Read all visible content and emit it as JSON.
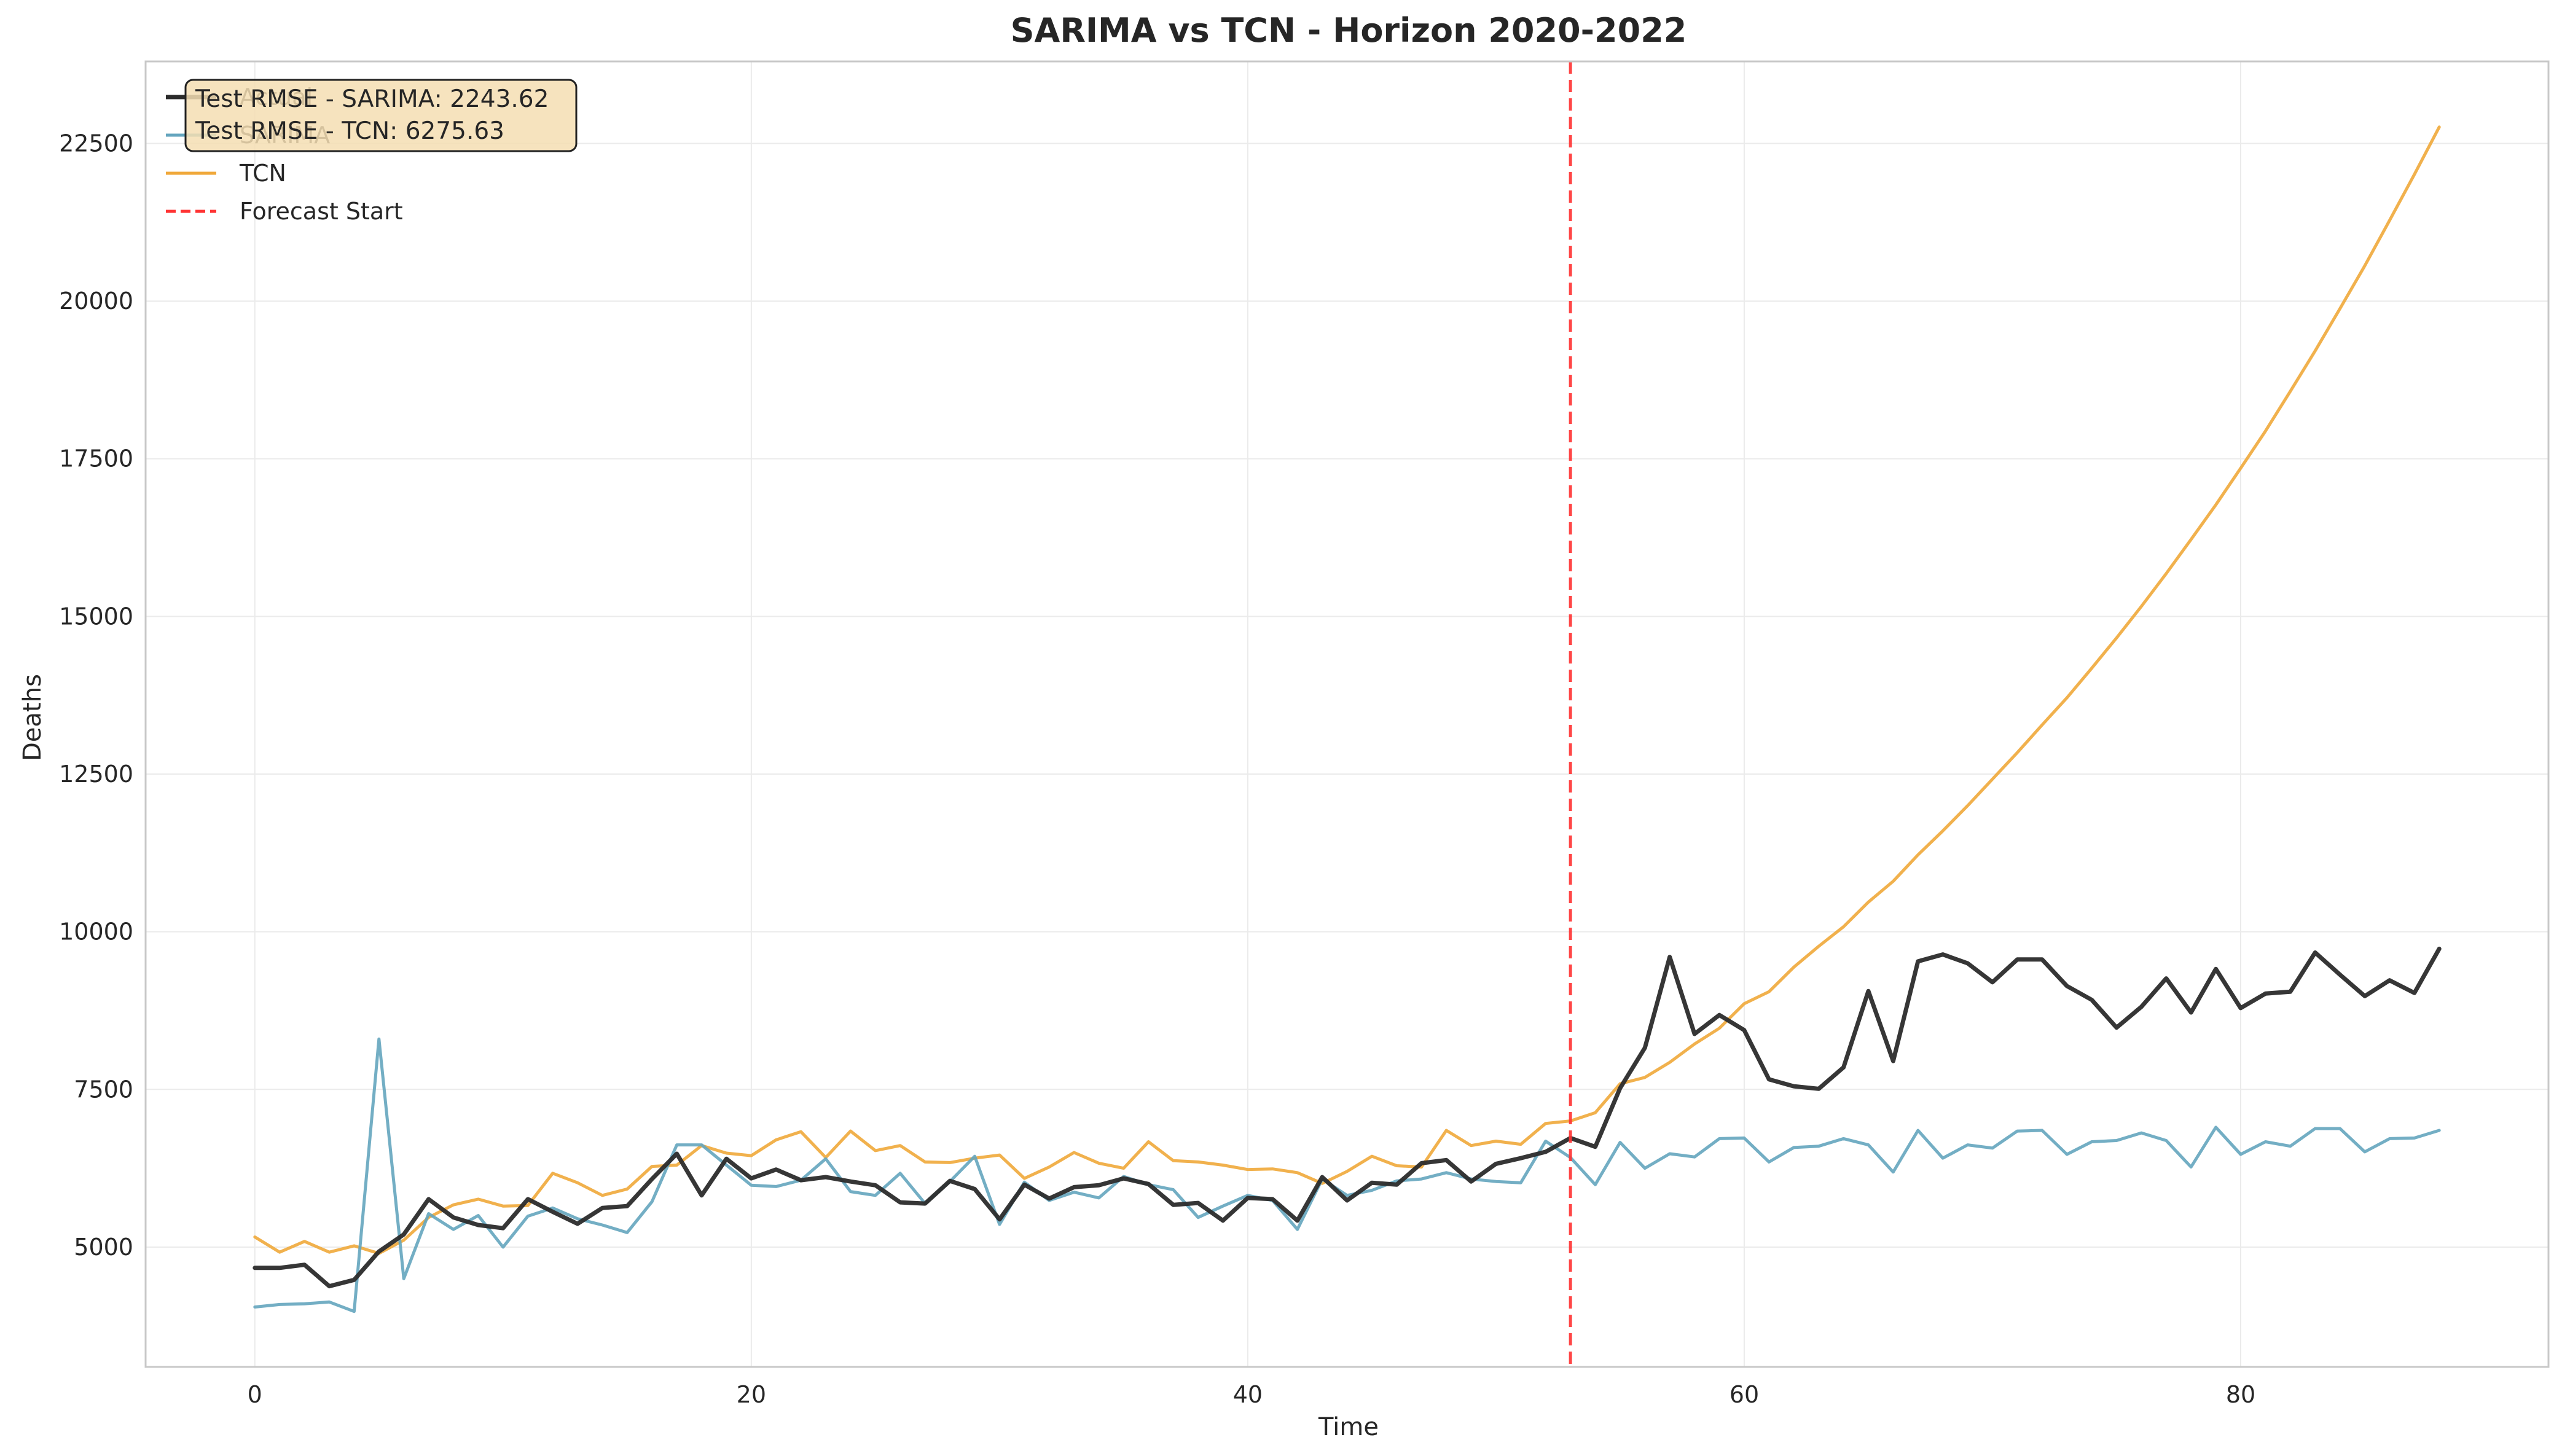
{
  "chart_data": {
    "type": "line",
    "title": "SARIMA vs TCN - Horizon 2020-2022",
    "xlabel": "Time",
    "ylabel": "Deaths",
    "xlim": [
      -4.4,
      92.4
    ],
    "ylim": [
      3100,
      23800
    ],
    "xticks": [
      0,
      20,
      40,
      60,
      80
    ],
    "yticks": [
      5000,
      7500,
      10000,
      12500,
      15000,
      17500,
      20000,
      22500
    ],
    "grid": true,
    "legend_position": "top-left",
    "forecast_start_x": 53,
    "annotation": [
      "Test RMSE - SARIMA: 2243.62",
      "Test RMSE - TCN: 6275.63"
    ],
    "series": [
      {
        "name": "Actual",
        "color": "#2b2b2b",
        "style": "solid-thick",
        "values": [
          4670,
          4670,
          4720,
          4380,
          4480,
          4930,
          5200,
          5760,
          5470,
          5350,
          5300,
          5760,
          5560,
          5370,
          5620,
          5650,
          6080,
          6480,
          5820,
          6400,
          6090,
          6230,
          6060,
          6110,
          6040,
          5980,
          5710,
          5690,
          6050,
          5920,
          5440,
          5990,
          5770,
          5950,
          5980,
          6090,
          6000,
          5670,
          5700,
          5420,
          5780,
          5760,
          5420,
          6110,
          5740,
          6020,
          5990,
          6330,
          6380,
          6040,
          6320,
          6410,
          6510,
          6730,
          6590,
          7520,
          8160,
          9600,
          8380,
          8680,
          8440,
          7660,
          7550,
          7510,
          7850,
          9060,
          7950,
          9530,
          9640,
          9500,
          9200,
          9560,
          9560,
          9140,
          8920,
          8480,
          8810,
          9260,
          8720,
          9410,
          8790,
          9020,
          9050,
          9670,
          9320,
          8980,
          9230,
          9030,
          9730
        ]
      },
      {
        "name": "SARIMA",
        "color": "#64a5be",
        "style": "solid",
        "values": [
          4050,
          4090,
          4100,
          4130,
          3980,
          8300,
          4500,
          5530,
          5280,
          5500,
          5000,
          5490,
          5620,
          5450,
          5350,
          5230,
          5720,
          6620,
          6620,
          6300,
          5980,
          5960,
          6060,
          6400,
          5880,
          5820,
          6170,
          5690,
          6040,
          6440,
          5360,
          6030,
          5740,
          5870,
          5780,
          6120,
          5990,
          5910,
          5470,
          5650,
          5820,
          5740,
          5280,
          6080,
          5820,
          5900,
          6050,
          6080,
          6180,
          6080,
          6040,
          6020,
          6680,
          6420,
          5990,
          6660,
          6250,
          6480,
          6430,
          6720,
          6730,
          6350,
          6580,
          6600,
          6720,
          6620,
          6190,
          6850,
          6410,
          6620,
          6570,
          6840,
          6850,
          6470,
          6670,
          6690,
          6810,
          6690,
          6270,
          6900,
          6470,
          6670,
          6600,
          6880,
          6880,
          6510,
          6720,
          6730,
          6850
        ]
      },
      {
        "name": "TCN",
        "color": "#f0a83a",
        "style": "solid",
        "values": [
          5160,
          4920,
          5090,
          4920,
          5020,
          4900,
          5110,
          5470,
          5670,
          5760,
          5650,
          5660,
          6170,
          6020,
          5820,
          5920,
          6280,
          6300,
          6610,
          6490,
          6450,
          6700,
          6830,
          6420,
          6840,
          6530,
          6610,
          6350,
          6340,
          6410,
          6460,
          6090,
          6270,
          6500,
          6330,
          6250,
          6670,
          6370,
          6350,
          6300,
          6230,
          6240,
          6180,
          6010,
          6200,
          6440,
          6290,
          6270,
          6850,
          6610,
          6680,
          6630,
          6960,
          7000,
          7130,
          7590,
          7690,
          7930,
          8220,
          8470,
          8860,
          9050,
          9440,
          9770,
          10080,
          10470,
          10800,
          11220,
          11600,
          12000,
          12420,
          12840,
          13280,
          13710,
          14180,
          14660,
          15160,
          15680,
          16220,
          16770,
          17350,
          17940,
          18570,
          19210,
          19880,
          20560,
          21280,
          22010,
          22760
        ]
      }
    ],
    "forecast_line": {
      "name": "Forecast Start",
      "color": "#ff3333",
      "style": "dashed"
    }
  }
}
